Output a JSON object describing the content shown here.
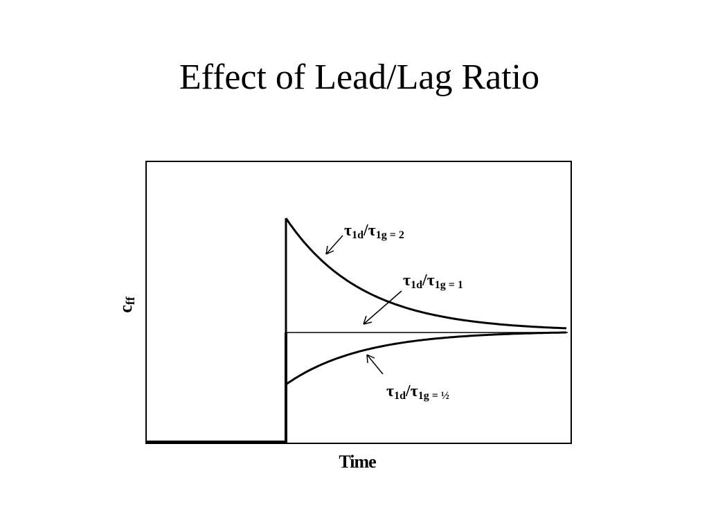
{
  "title": "Effect of Lead/Lag Ratio",
  "y_label": {
    "base": "c",
    "sub": "ff"
  },
  "x_label": "Time",
  "annotations": [
    {
      "base1": "τ",
      "sub1": "1d",
      "base2": "/τ",
      "sub2": "1g = 2"
    },
    {
      "base1": "τ",
      "sub1": "1d",
      "base2": "/τ",
      "sub2": "1g = 1"
    },
    {
      "base1": "τ",
      "sub1": "1d",
      "base2": "/τ",
      "sub2": "1g = ½"
    }
  ]
}
